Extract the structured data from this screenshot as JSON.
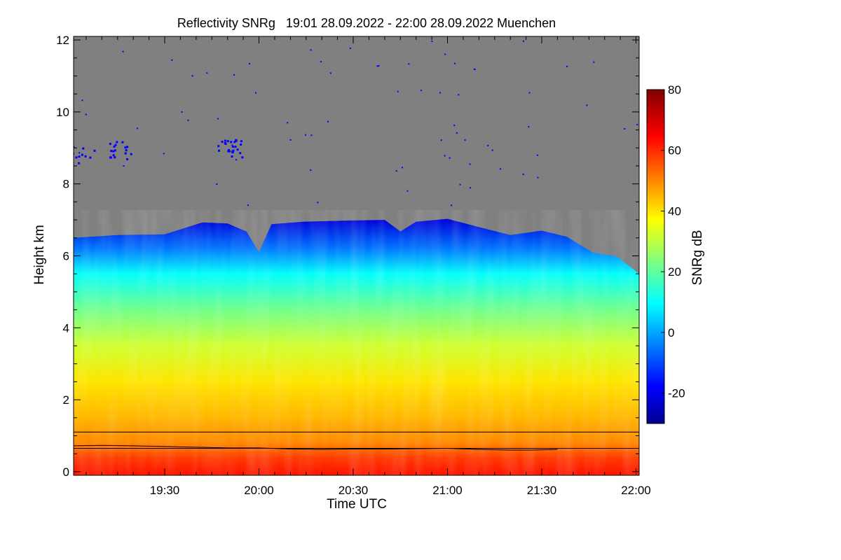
{
  "chart_data": {
    "type": "heatmap",
    "title": "Reflectivity SNRg   19:01 28.09.2022 - 22:00 28.09.2022 Muenchen",
    "xlabel": "Time UTC",
    "ylabel": "Height km",
    "x_range_utc": [
      "19:01",
      "22:01"
    ],
    "x_range_min": [
      1141,
      1321
    ],
    "x_ticks": [
      {
        "min": 1170,
        "label": "19:30"
      },
      {
        "min": 1200,
        "label": "20:00"
      },
      {
        "min": 1230,
        "label": "20:30"
      },
      {
        "min": 1260,
        "label": "21:00"
      },
      {
        "min": 1290,
        "label": "21:30"
      },
      {
        "min": 1320,
        "label": "22:00"
      }
    ],
    "ylim": [
      -0.1,
      12.1
    ],
    "y_ticks": [
      {
        "value": 0,
        "label": "0"
      },
      {
        "value": 2,
        "label": "2"
      },
      {
        "value": 4,
        "label": "4"
      },
      {
        "value": 6,
        "label": "6"
      },
      {
        "value": 8,
        "label": "8"
      },
      {
        "value": 10,
        "label": "10"
      },
      {
        "value": 12,
        "label": "12"
      }
    ],
    "colorbar": {
      "label": "SNRg dB",
      "range": [
        -30,
        80
      ],
      "ticks": [
        {
          "value": -20,
          "label": "-20"
        },
        {
          "value": 0,
          "label": "0"
        },
        {
          "value": 20,
          "label": "20"
        },
        {
          "value": 40,
          "label": "40"
        },
        {
          "value": 60,
          "label": "60"
        },
        {
          "value": 80,
          "label": "80"
        }
      ]
    },
    "cloud_top_km": {
      "x_min": [
        1141,
        1155,
        1170,
        1182,
        1190,
        1196,
        1200,
        1204,
        1214,
        1228,
        1240,
        1245,
        1250,
        1260,
        1270,
        1280,
        1290,
        1298,
        1306,
        1314,
        1321
      ],
      "height": [
        6.5,
        6.5,
        6.6,
        6.85,
        6.9,
        6.6,
        6.1,
        6.8,
        6.95,
        6.9,
        7.0,
        6.6,
        6.95,
        6.95,
        6.8,
        6.5,
        6.7,
        6.45,
        6.1,
        5.9,
        5.5
      ]
    },
    "snr_profile_db": {
      "height": [
        0,
        0.4,
        0.8,
        1.5,
        2.5,
        3.5,
        4.5,
        5.5,
        6.2,
        7.0
      ],
      "value": [
        62,
        58,
        50,
        45,
        40,
        32,
        22,
        10,
        -5,
        -22
      ]
    },
    "overlay_lines": [
      {
        "name": "horizontal reference",
        "height": 1.1
      },
      {
        "name": "horizontal reference",
        "height": 0.65
      },
      {
        "name": "boundary layer height",
        "x_min": [
          1141,
          1150,
          1160,
          1170,
          1180,
          1190,
          1200,
          1210,
          1220,
          1230,
          1240,
          1250,
          1260,
          1270,
          1280,
          1287,
          1295
        ],
        "height": [
          0.72,
          0.73,
          0.72,
          0.7,
          0.68,
          0.66,
          0.66,
          0.63,
          0.62,
          0.63,
          0.63,
          0.64,
          0.65,
          0.62,
          0.6,
          0.6,
          0.62
        ]
      }
    ],
    "no_signal_color": "#808080",
    "sparse_echo_color": "#0000ff"
  }
}
